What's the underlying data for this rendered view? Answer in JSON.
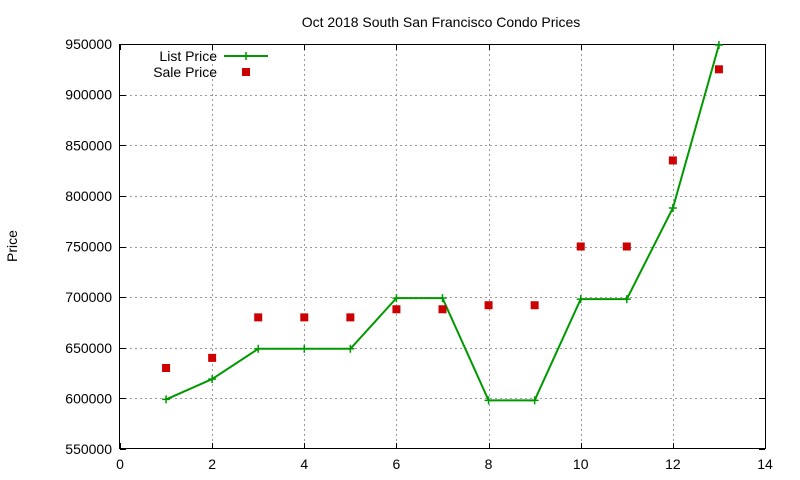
{
  "chart_data": {
    "type": "line",
    "title": "Oct 2018 South San Francisco Condo Prices",
    "xlabel": "",
    "ylabel": "Price",
    "xlim": [
      0,
      14
    ],
    "ylim": [
      550000,
      950000
    ],
    "xticks": [
      0,
      2,
      4,
      6,
      8,
      10,
      12,
      14
    ],
    "yticks": [
      550000,
      600000,
      650000,
      700000,
      750000,
      800000,
      850000,
      900000,
      950000
    ],
    "grid": true,
    "legend_position": "top-left",
    "series": [
      {
        "name": "List Price",
        "kind": "line-with-plus-markers",
        "color": "#009900",
        "x": [
          1,
          2,
          3,
          4,
          5,
          6,
          7,
          8,
          9,
          10,
          11,
          12,
          13
        ],
        "y": [
          599000,
          619000,
          649000,
          649000,
          649000,
          699000,
          699000,
          598000,
          598000,
          698000,
          698000,
          788000,
          949000
        ]
      },
      {
        "name": "Sale Price",
        "kind": "square-markers",
        "color": "#cc0000",
        "x": [
          1,
          2,
          3,
          4,
          5,
          6,
          7,
          8,
          9,
          10,
          11,
          12,
          13
        ],
        "y": [
          630000,
          640000,
          680000,
          680000,
          680000,
          688000,
          688000,
          692000,
          692000,
          750000,
          750000,
          835000,
          925000
        ]
      }
    ]
  }
}
